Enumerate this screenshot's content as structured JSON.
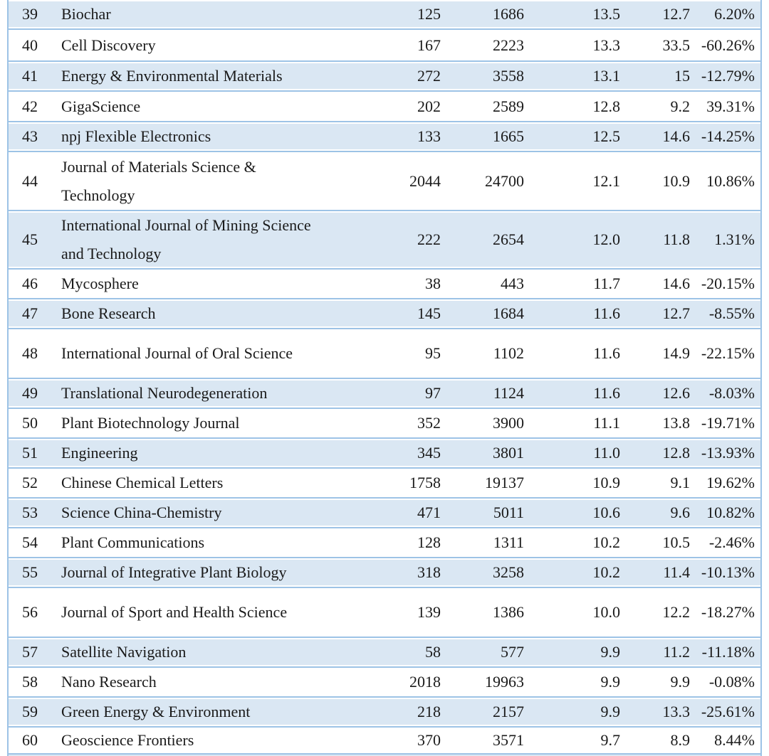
{
  "colors": {
    "row_stripe": "#dae7f3",
    "table_border": "#9dc3e6",
    "text": "#1a1a1a"
  },
  "table": {
    "rows": [
      {
        "rank": "39",
        "name": "Biochar",
        "values": [
          "125",
          "1686",
          "13.5",
          "12.7",
          "6.20%"
        ],
        "h": 40
      },
      {
        "rank": "40",
        "name": "Cell Discovery",
        "values": [
          "167",
          "2223",
          "13.3",
          "33.5",
          "-60.26%"
        ],
        "h": 45
      },
      {
        "rank": "41",
        "name": "Energy & Environmental Materials",
        "values": [
          "272",
          "3558",
          "13.1",
          "15",
          "-12.79%"
        ],
        "h": 42
      },
      {
        "rank": "42",
        "name": "GigaScience",
        "values": [
          "202",
          "2589",
          "12.8",
          "9.2",
          "39.31%"
        ],
        "h": 43
      },
      {
        "rank": "43",
        "name": "npj Flexible Electronics",
        "values": [
          "133",
          "1665",
          "12.5",
          "14.6",
          "-14.25%"
        ],
        "h": 42
      },
      {
        "rank": "44",
        "name": "Journal of Materials Science &\nTechnology",
        "values": [
          "2044",
          "24700",
          "12.1",
          "10.9",
          "10.86%"
        ],
        "h": 83
      },
      {
        "rank": "45",
        "name": "International Journal of Mining Science\nand Technology",
        "values": [
          "222",
          "2654",
          "12.0",
          "11.8",
          "1.31%"
        ],
        "h": 82
      },
      {
        "rank": "46",
        "name": "Mycosphere",
        "values": [
          "38",
          "443",
          "11.7",
          "14.6",
          "-20.15%"
        ],
        "h": 42
      },
      {
        "rank": "47",
        "name": "Bone Research",
        "values": [
          "145",
          "1684",
          "11.6",
          "12.7",
          "-8.55%"
        ],
        "h": 42
      },
      {
        "rank": "48",
        "name": "International Journal of Oral Science",
        "values": [
          "95",
          "1102",
          "11.6",
          "14.9",
          "-22.15%"
        ],
        "h": 70
      },
      {
        "rank": "49",
        "name": "Translational Neurodegeneration",
        "values": [
          "97",
          "1124",
          "11.6",
          "12.6",
          "-8.03%"
        ],
        "h": 42
      },
      {
        "rank": "50",
        "name": "Plant Biotechnology Journal",
        "values": [
          "352",
          "3900",
          "11.1",
          "13.8",
          "-19.71%"
        ],
        "h": 42
      },
      {
        "rank": "51",
        "name": "Engineering",
        "values": [
          "345",
          "3801",
          "11.0",
          "12.8",
          "-13.93%"
        ],
        "h": 42
      },
      {
        "rank": "52",
        "name": "Chinese Chemical Letters",
        "values": [
          "1758",
          "19137",
          "10.9",
          "9.1",
          "19.62%"
        ],
        "h": 42
      },
      {
        "rank": "53",
        "name": "Science China-Chemistry",
        "values": [
          "471",
          "5011",
          "10.6",
          "9.6",
          "10.82%"
        ],
        "h": 42
      },
      {
        "rank": "54",
        "name": "Plant Communications",
        "values": [
          "128",
          "1311",
          "10.2",
          "10.5",
          "-2.46%"
        ],
        "h": 42
      },
      {
        "rank": "55",
        "name": "Journal of Integrative Plant Biology",
        "values": [
          "318",
          "3258",
          "10.2",
          "11.4",
          "-10.13%"
        ],
        "h": 42
      },
      {
        "rank": "56",
        "name": "Journal of Sport and Health Science",
        "values": [
          "139",
          "1386",
          "10.0",
          "12.2",
          "-18.27%"
        ],
        "h": 70
      },
      {
        "rank": "57",
        "name": "Satellite Navigation",
        "values": [
          "58",
          "577",
          "9.9",
          "11.2",
          "-11.18%"
        ],
        "h": 42
      },
      {
        "rank": "58",
        "name": "Nano Research",
        "values": [
          "2018",
          "19963",
          "9.9",
          "9.9",
          "-0.08%"
        ],
        "h": 42
      },
      {
        "rank": "59",
        "name": "Green Energy & Environment",
        "values": [
          "218",
          "2157",
          "9.9",
          "13.3",
          "-25.61%"
        ],
        "h": 42
      },
      {
        "rank": "60",
        "name": "Geoscience Frontiers",
        "values": [
          "370",
          "3571",
          "9.7",
          "8.9",
          "8.44%"
        ],
        "h": 38
      }
    ]
  }
}
